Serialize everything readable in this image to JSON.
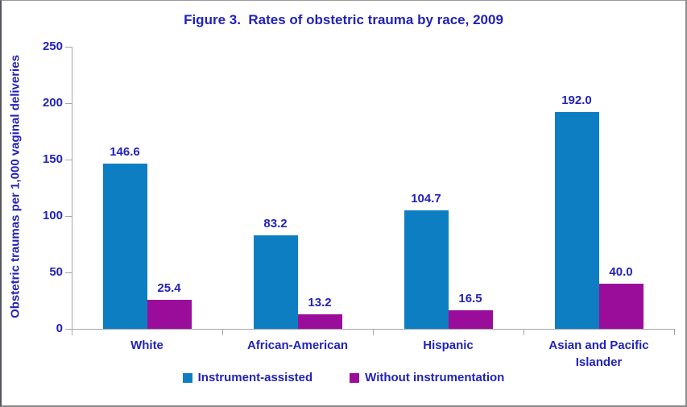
{
  "chart_data": {
    "type": "bar",
    "title": "Figure 3.  Rates of obstetric trauma by race, 2009",
    "xlabel": "",
    "ylabel": "Obstetric traumas per 1,000 vaginal deliveries",
    "ylim": [
      0,
      250
    ],
    "yticks": [
      0,
      50,
      100,
      150,
      200,
      250
    ],
    "grid": false,
    "legend_position": "bottom",
    "categories": [
      "White",
      "African-American",
      "Hispanic",
      "Asian and Pacific Islander"
    ],
    "series": [
      {
        "name": "Instrument-assisted",
        "color": "#0E7EC3",
        "values": [
          146.6,
          83.2,
          104.7,
          192.0
        ]
      },
      {
        "name": "Without instrumentation",
        "color": "#9A0D9A",
        "values": [
          25.4,
          13.2,
          16.5,
          40.0
        ]
      }
    ],
    "value_label_format": "one-decimal",
    "text_color": "#2222B8",
    "axis_color": "#A6A6A6",
    "background_color": "#FFFFFF"
  }
}
